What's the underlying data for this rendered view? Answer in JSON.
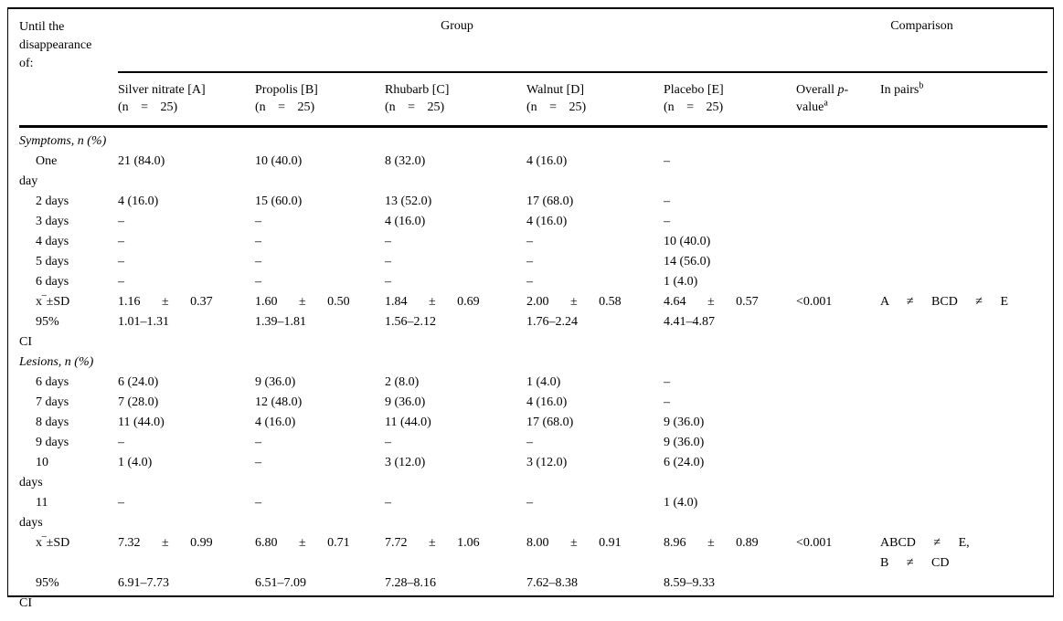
{
  "table": {
    "corner_header": "Until the disappearance of:",
    "group_header": "Group",
    "comparison_header": "Comparison",
    "columns": [
      {
        "name": "Silver nitrate [A]",
        "n": "(n = 25)"
      },
      {
        "name": "Propolis [B]",
        "n": "(n = 25)"
      },
      {
        "name": "Rhubarb [C]",
        "n": "(n = 25)"
      },
      {
        "name": "Walnut [D]",
        "n": "(n = 25)"
      },
      {
        "name": "Placebo [E]",
        "n": "(n = 25)"
      }
    ],
    "p_header": {
      "pre": "Overall ",
      "italic": "p",
      "hyphen": "-",
      "rest": "value",
      "sup": "a"
    },
    "pairs_header": {
      "text": "In pairs",
      "sup": "b"
    },
    "rows": [
      {
        "type": "section",
        "label": "Symptoms, n (%)"
      },
      {
        "label": "One day",
        "cells": [
          "21 (84.0)",
          "10 (40.0)",
          "8 (32.0)",
          "4 (16.0)",
          "–"
        ]
      },
      {
        "label": "2 days",
        "cells": [
          "4 (16.0)",
          "15 (60.0)",
          "13 (52.0)",
          "17 (68.0)",
          "–"
        ]
      },
      {
        "label": "3 days",
        "cells": [
          "–",
          "–",
          "4 (16.0)",
          "4 (16.0)",
          "–"
        ]
      },
      {
        "label": "4 days",
        "cells": [
          "–",
          "–",
          "–",
          "–",
          "10 (40.0)"
        ]
      },
      {
        "label": "5 days",
        "cells": [
          "–",
          "–",
          "–",
          "–",
          "14 (56.0)"
        ]
      },
      {
        "label": "6 days",
        "cells": [
          "–",
          "–",
          "–",
          "–",
          "1 (4.0)"
        ]
      },
      {
        "label": "x‾±SD",
        "cells": [
          "1.16 ± 0.37",
          "1.60 ± 0.50",
          "1.84 ± 0.69",
          "2.00 ± 0.58",
          "4.64 ± 0.57"
        ],
        "p": "<0.001",
        "pairs": "A ≠ BCD ≠ E"
      },
      {
        "label": "95% CI",
        "cells": [
          "1.01–1.31",
          "1.39–1.81",
          "1.56–2.12",
          "1.76–2.24",
          "4.41–4.87"
        ]
      },
      {
        "type": "section",
        "label": "Lesions, n (%)"
      },
      {
        "label": "6 days",
        "cells": [
          "6 (24.0)",
          "9 (36.0)",
          "2 (8.0)",
          "1 (4.0)",
          "–"
        ]
      },
      {
        "label": "7 days",
        "cells": [
          "7 (28.0)",
          "12 (48.0)",
          "9 (36.0)",
          "4 (16.0)",
          "–"
        ]
      },
      {
        "label": "8 days",
        "cells": [
          "11 (44.0)",
          "4 (16.0)",
          "11 (44.0)",
          "17 (68.0)",
          "9 (36.0)"
        ]
      },
      {
        "label": "9 days",
        "cells": [
          "–",
          "–",
          "–",
          "–",
          "9 (36.0)"
        ]
      },
      {
        "label": "10 days",
        "cells": [
          "1 (4.0)",
          "–",
          "3 (12.0)",
          "3 (12.0)",
          "6 (24.0)"
        ]
      },
      {
        "label": "11 days",
        "cells": [
          "–",
          "–",
          "–",
          "–",
          "1 (4.0)"
        ]
      },
      {
        "label": "x‾±SD",
        "cells": [
          "7.32 ± 0.99",
          "6.80 ± 0.71",
          "7.72 ± 1.06",
          "8.00 ± 0.91",
          "8.96 ± 0.89"
        ],
        "p": "<0.001",
        "pairs": "ABCD ≠ E,\nB ≠ CD"
      },
      {
        "label": "95% CI",
        "cells": [
          "6.91–7.73",
          "6.51–7.09",
          "7.28–8.16",
          "7.62–8.38",
          "8.59–9.33"
        ]
      }
    ]
  }
}
